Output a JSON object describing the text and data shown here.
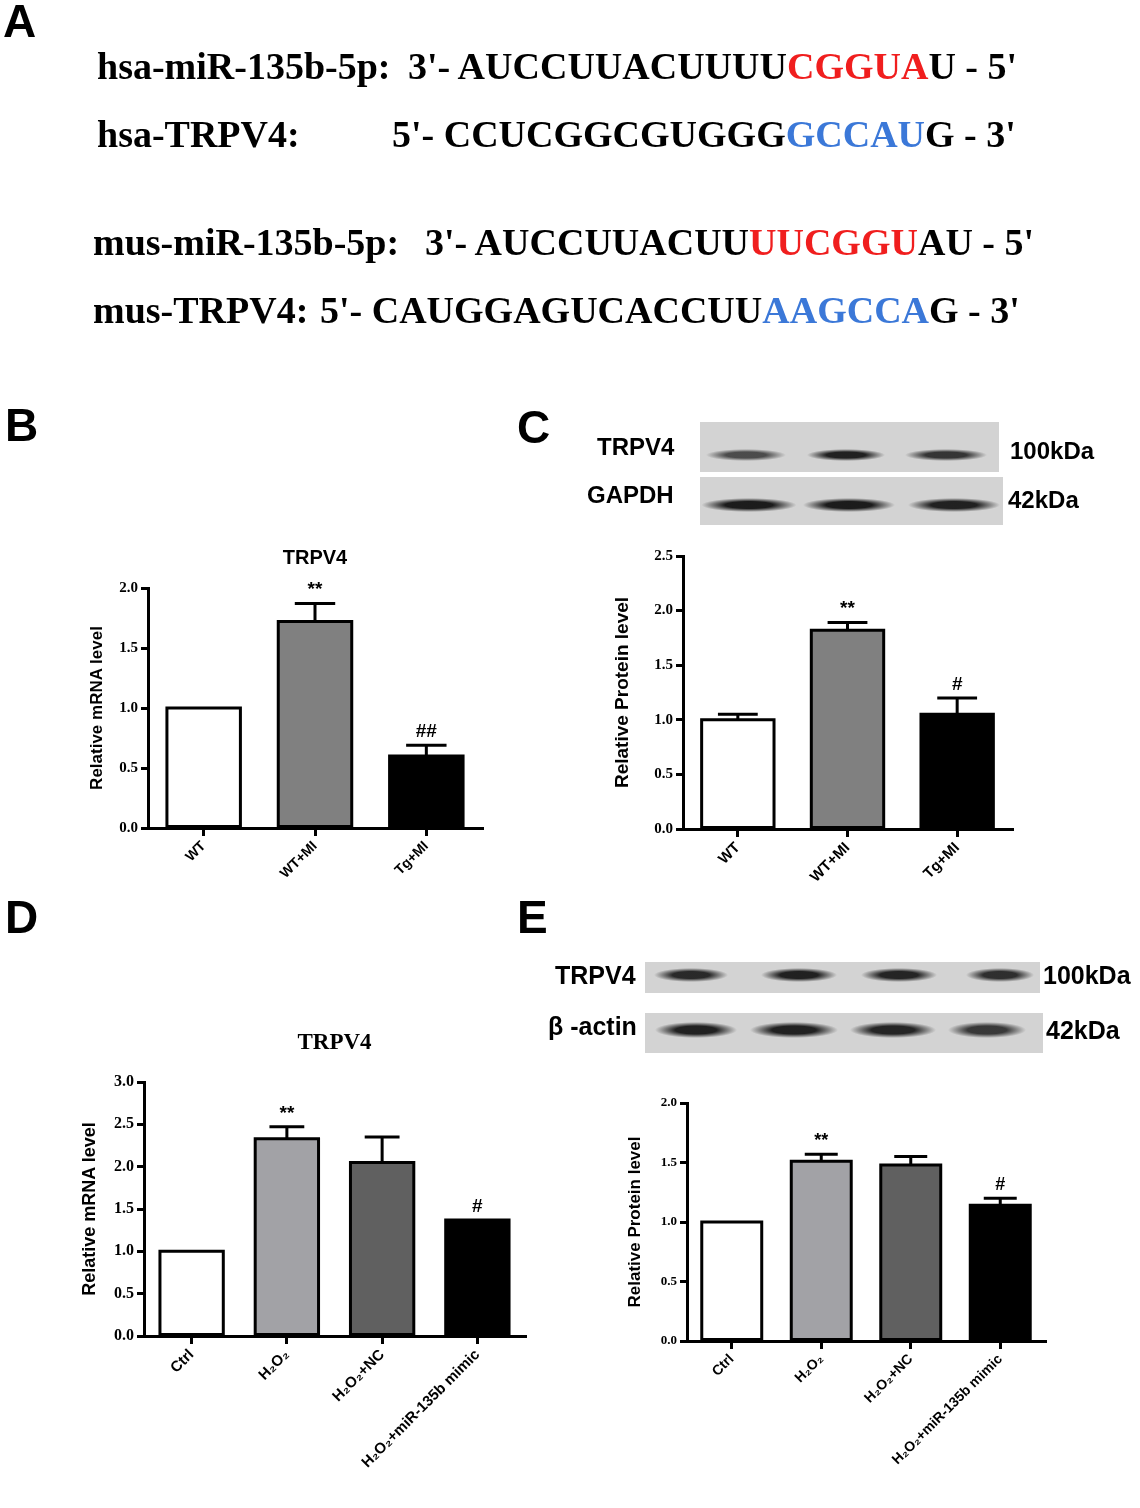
{
  "chart_data": [
    {
      "type": "other",
      "annotations": [
        "A",
        "hsa-miR-135b-5p:",
        "3'- AUCCUUACUUUU",
        "CGGUA",
        "U - 5'",
        "hsa-TRPV4:",
        "5'- CCUCGGCGUGGG",
        "GCCAU",
        "G - 3'",
        "mus-miR-135b-5p:",
        "3'- AUCCUUACUU",
        "UUCGGU",
        "AU - 5'",
        "mus-TRPV4:",
        "5'- CAUGGAGUCACCUU",
        "AAGCCA",
        "G - 3'"
      ],
      "colors": [
        "#000000",
        "#000000",
        "#000000",
        "#f01e1e",
        "#000000",
        "#000000",
        "#000000",
        "#3b78d8",
        "#000000",
        "#000000",
        "#000000",
        "#f01e1e",
        "#000000",
        "#000000",
        "#000000",
        "#3b78d8",
        "#000000"
      ]
    },
    {
      "type": "bar",
      "title": "TRPV4",
      "ylabel": "Relative mRNA level",
      "categories": [
        "WT",
        "WT+MI",
        "Tg+MI"
      ],
      "values": [
        1.0,
        1.72,
        0.6
      ],
      "colors": [
        "#ffffff",
        "#808080",
        "#000000"
      ],
      "errors": [
        null,
        [
          1.72,
          1.87
        ],
        [
          0.6,
          0.69
        ]
      ],
      "ylim": [
        0,
        2
      ],
      "yticks": [
        {
          "value": 0,
          "label": "0.0"
        },
        {
          "value": 0.5,
          "label": "0.5"
        },
        {
          "value": 1,
          "label": "1.0"
        },
        {
          "value": 1.5,
          "label": "1.5"
        },
        {
          "value": 2,
          "label": "2.0"
        }
      ],
      "annotations": [
        "B",
        {
          "text": "**",
          "x": "WT+MI",
          "y": 1.87
        },
        {
          "text": "##",
          "x": "Tg+MI",
          "y": 0.69
        }
      ]
    },
    {
      "type": "bar",
      "ylabel": "Relative Protein level",
      "categories": [
        "WT",
        "WT+MI",
        "Tg+MI"
      ],
      "values": [
        1.0,
        1.82,
        1.05
      ],
      "colors": [
        "#ffffff",
        "#808080",
        "#000000"
      ],
      "errors": [
        [
          1.0,
          1.05
        ],
        [
          1.82,
          1.89
        ],
        [
          1.05,
          1.2
        ]
      ],
      "ylim": [
        0,
        2.5
      ],
      "yticks": [
        {
          "value": 0,
          "label": "0.0"
        },
        {
          "value": 0.5,
          "label": "0.5"
        },
        {
          "value": 1,
          "label": "1.0"
        },
        {
          "value": 1.5,
          "label": "1.5"
        },
        {
          "value": 2,
          "label": "2.0"
        },
        {
          "value": 2.5,
          "label": "2.5"
        }
      ],
      "annotations": [
        "C",
        "TRPV4",
        "GAPDH",
        "100kDa",
        "42kDa",
        {
          "text": "**",
          "x": "WT+MI",
          "y": 1.89
        },
        {
          "text": "#",
          "x": "Tg+MI",
          "y": 1.2
        }
      ]
    },
    {
      "type": "bar",
      "title": "TRPV4",
      "ylabel": "Relative mRNA level",
      "categories": [
        "Ctrl",
        "H₂O₂",
        "H₂O₂+NC",
        "H₂O₂+miR-135b mimic"
      ],
      "values": [
        1.0,
        2.33,
        2.05,
        1.37
      ],
      "colors": [
        "#ffffff",
        "#a2a2a6",
        "#606060",
        "#000000"
      ],
      "errors": [
        null,
        [
          2.33,
          2.47
        ],
        [
          2.05,
          2.35
        ],
        null
      ],
      "ylim": [
        0,
        3
      ],
      "yticks": [
        {
          "value": 0,
          "label": "0.0"
        },
        {
          "value": 0.5,
          "label": "0.5"
        },
        {
          "value": 1,
          "label": "1.0"
        },
        {
          "value": 1.5,
          "label": "1.5"
        },
        {
          "value": 2,
          "label": "2.0"
        },
        {
          "value": 2.5,
          "label": "2.5"
        },
        {
          "value": 3,
          "label": "3.0"
        }
      ],
      "annotations": [
        "D",
        {
          "text": "**",
          "x": "H₂O₂",
          "y": 2.47
        },
        {
          "text": "#",
          "x": "H₂O₂+miR-135b mimic",
          "y": 1.37
        }
      ]
    },
    {
      "type": "bar",
      "ylabel": "Relative Protein level",
      "categories": [
        "Ctrl",
        "H₂O₂",
        "H₂O₂+NC",
        "H₂O₂+miR-135b mimic"
      ],
      "values": [
        1.0,
        1.51,
        1.48,
        1.14
      ],
      "colors": [
        "#ffffff",
        "#a2a2a6",
        "#606060",
        "#000000"
      ],
      "errors": [
        null,
        [
          1.51,
          1.57
        ],
        [
          1.48,
          1.55
        ],
        [
          1.14,
          1.2
        ]
      ],
      "ylim": [
        0,
        2
      ],
      "yticks": [
        {
          "value": 0,
          "label": "0.0"
        },
        {
          "value": 0.5,
          "label": "0.5"
        },
        {
          "value": 1,
          "label": "1.0"
        },
        {
          "value": 1.5,
          "label": "1.5"
        },
        {
          "value": 2,
          "label": "2.0"
        }
      ],
      "annotations": [
        "E",
        "TRPV4",
        "β -actin",
        "100kDa",
        "42kDa",
        {
          "text": "**",
          "x": "H₂O₂",
          "y": 1.57
        },
        {
          "text": "#",
          "x": "H₂O₂+miR-135b mimic",
          "y": 1.2
        }
      ]
    }
  ]
}
